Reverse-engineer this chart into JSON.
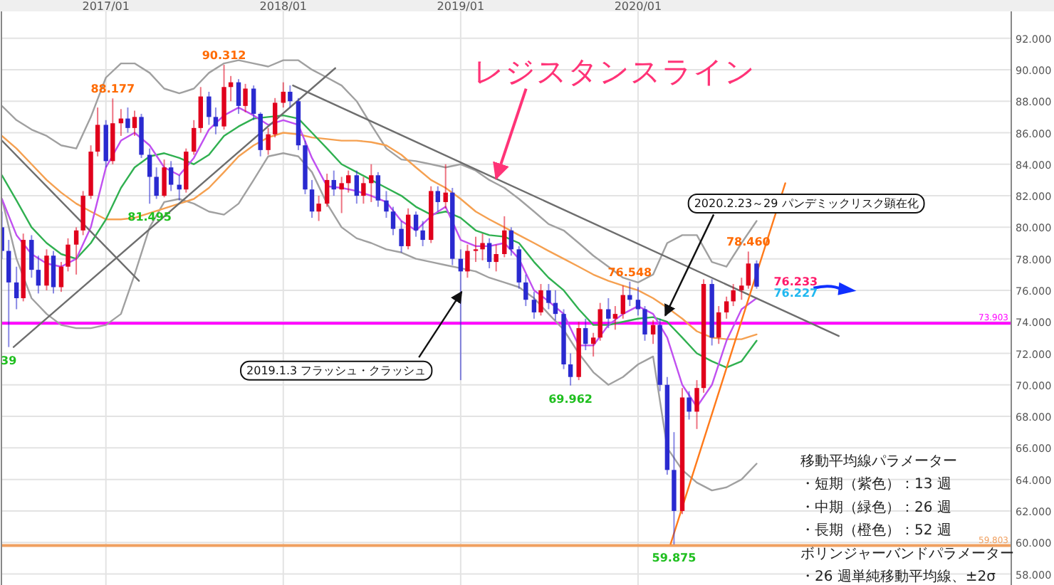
{
  "chart_data": {
    "type": "candlestick",
    "x": [
      "2016-06-01",
      "2016-06-15",
      "2016-07-01",
      "2016-07-15",
      "2016-08-01",
      "2016-08-15",
      "2016-09-01",
      "2016-09-15",
      "2016-10-01",
      "2016-10-15",
      "2016-11-01",
      "2016-11-15",
      "2016-12-01",
      "2016-12-15",
      "2017-01-01",
      "2017-01-15",
      "2017-02-01",
      "2017-02-15",
      "2017-03-01",
      "2017-03-15",
      "2017-04-01",
      "2017-04-15",
      "2017-05-01",
      "2017-05-15",
      "2017-06-01",
      "2017-06-15",
      "2017-07-01",
      "2017-07-15",
      "2017-08-01",
      "2017-08-15",
      "2017-09-01",
      "2017-09-15",
      "2017-10-01",
      "2017-10-15",
      "2017-11-01",
      "2017-11-15",
      "2017-12-01",
      "2017-12-15",
      "2018-01-01",
      "2018-01-15",
      "2018-02-01",
      "2018-02-15",
      "2018-03-01",
      "2018-03-15",
      "2018-04-01",
      "2018-04-15",
      "2018-05-01",
      "2018-05-15",
      "2018-06-01",
      "2018-06-15",
      "2018-07-01",
      "2018-07-15",
      "2018-08-01",
      "2018-08-15",
      "2018-09-01",
      "2018-09-15",
      "2018-10-01",
      "2018-10-15",
      "2018-11-01",
      "2018-11-15",
      "2018-12-01",
      "2018-12-15",
      "2019-01-01",
      "2019-01-15",
      "2019-02-01",
      "2019-02-15",
      "2019-03-01",
      "2019-03-15",
      "2019-04-01",
      "2019-04-15",
      "2019-05-01",
      "2019-05-15",
      "2019-06-01",
      "2019-06-15",
      "2019-07-01",
      "2019-07-15",
      "2019-08-01",
      "2019-08-15",
      "2019-09-01",
      "2019-09-15",
      "2019-10-01",
      "2019-10-15",
      "2019-11-01",
      "2019-11-15",
      "2019-12-01",
      "2019-12-15",
      "2020-01-01",
      "2020-01-15",
      "2020-02-01",
      "2020-02-15",
      "2020-03-01",
      "2020-03-15",
      "2020-04-01",
      "2020-04-15",
      "2020-05-01",
      "2020-05-15",
      "2020-06-01",
      "2020-06-15",
      "2020-07-01",
      "2020-07-15",
      "2020-08-01",
      "2020-08-15",
      "2020-09-01"
    ],
    "ohlc": [
      [
        80.0,
        81.0,
        78.0,
        78.5
      ],
      [
        78.5,
        79.2,
        72.4,
        76.5
      ],
      [
        76.5,
        77.5,
        74.8,
        75.5
      ],
      [
        75.5,
        79.6,
        75.3,
        79.2
      ],
      [
        79.2,
        79.5,
        76.8,
        77.3
      ],
      [
        77.3,
        78.2,
        75.8,
        76.3
      ],
      [
        76.3,
        78.6,
        76.0,
        78.2
      ],
      [
        78.2,
        78.5,
        75.8,
        76.2
      ],
      [
        76.2,
        77.8,
        75.9,
        77.5
      ],
      [
        77.5,
        79.3,
        77.2,
        78.9
      ],
      [
        78.9,
        80.0,
        77.0,
        79.8
      ],
      [
        79.8,
        82.3,
        79.5,
        82.0
      ],
      [
        82.0,
        85.2,
        81.8,
        84.8
      ],
      [
        84.8,
        87.6,
        84.5,
        86.5
      ],
      [
        86.5,
        86.8,
        83.8,
        84.2
      ],
      [
        84.2,
        88.177,
        84.0,
        86.6
      ],
      [
        86.6,
        87.5,
        85.8,
        86.9
      ],
      [
        86.9,
        87.6,
        86.0,
        86.3
      ],
      [
        86.3,
        87.4,
        85.8,
        87.0
      ],
      [
        87.0,
        87.2,
        84.4,
        84.6
      ],
      [
        84.6,
        85.0,
        81.495,
        83.2
      ],
      [
        83.2,
        83.8,
        81.8,
        82.0
      ],
      [
        82.0,
        84.3,
        81.9,
        83.8
      ],
      [
        83.8,
        84.2,
        82.3,
        82.7
      ],
      [
        82.7,
        83.3,
        81.7,
        82.4
      ],
      [
        82.4,
        85.0,
        82.2,
        84.8
      ],
      [
        84.8,
        86.8,
        84.6,
        86.3
      ],
      [
        86.3,
        88.9,
        86.0,
        88.3
      ],
      [
        88.3,
        88.6,
        86.5,
        87.0
      ],
      [
        87.0,
        87.6,
        85.9,
        86.4
      ],
      [
        86.4,
        90.312,
        86.2,
        88.9
      ],
      [
        88.9,
        89.6,
        88.0,
        89.2
      ],
      [
        89.2,
        89.4,
        87.2,
        87.7
      ],
      [
        87.7,
        89.1,
        87.3,
        88.8
      ],
      [
        88.8,
        89.0,
        86.8,
        87.2
      ],
      [
        87.2,
        87.3,
        84.5,
        84.9
      ],
      [
        84.9,
        86.3,
        84.6,
        85.9
      ],
      [
        85.9,
        88.2,
        85.7,
        87.9
      ],
      [
        87.9,
        89.2,
        87.6,
        88.6
      ],
      [
        88.6,
        89.0,
        87.6,
        88.0
      ],
      [
        88.0,
        88.2,
        84.9,
        85.2
      ],
      [
        85.2,
        85.5,
        82.1,
        82.4
      ],
      [
        82.4,
        83.0,
        80.6,
        81.0
      ],
      [
        81.0,
        82.0,
        80.4,
        81.5
      ],
      [
        81.5,
        83.4,
        81.3,
        83.0
      ],
      [
        83.0,
        83.6,
        82.0,
        82.4
      ],
      [
        82.4,
        83.2,
        80.9,
        82.8
      ],
      [
        82.8,
        83.6,
        82.2,
        83.3
      ],
      [
        83.3,
        83.6,
        81.5,
        82.0
      ],
      [
        82.0,
        83.2,
        81.5,
        82.8
      ],
      [
        82.8,
        84.0,
        81.6,
        83.3
      ],
      [
        83.3,
        83.5,
        81.3,
        81.7
      ],
      [
        81.7,
        82.3,
        80.6,
        81.0
      ],
      [
        81.0,
        81.3,
        79.5,
        79.9
      ],
      [
        79.9,
        80.4,
        78.4,
        78.8
      ],
      [
        78.8,
        81.2,
        78.6,
        80.8
      ],
      [
        80.8,
        81.0,
        79.4,
        79.8
      ],
      [
        79.8,
        80.4,
        78.8,
        79.2
      ],
      [
        79.2,
        82.6,
        79.0,
        82.3
      ],
      [
        82.3,
        82.6,
        81.0,
        81.6
      ],
      [
        81.6,
        84.0,
        81.2,
        82.2
      ],
      [
        82.2,
        82.5,
        77.6,
        78.0
      ],
      [
        78.0,
        78.6,
        70.3,
        77.2
      ],
      [
        77.2,
        78.9,
        76.8,
        78.5
      ],
      [
        78.5,
        79.4,
        77.8,
        78.6
      ],
      [
        78.6,
        79.6,
        77.9,
        79.0
      ],
      [
        79.0,
        79.3,
        77.4,
        77.8
      ],
      [
        77.8,
        78.9,
        77.2,
        78.3
      ],
      [
        78.3,
        80.7,
        78.1,
        79.8
      ],
      [
        79.8,
        80.0,
        78.2,
        78.6
      ],
      [
        78.6,
        78.8,
        76.1,
        76.5
      ],
      [
        76.5,
        77.0,
        75.0,
        75.4
      ],
      [
        75.4,
        75.9,
        74.2,
        74.6
      ],
      [
        74.6,
        76.4,
        74.4,
        76.0
      ],
      [
        76.0,
        76.4,
        74.8,
        75.2
      ],
      [
        75.2,
        76.0,
        74.1,
        74.5
      ],
      [
        74.5,
        74.8,
        71.0,
        71.3
      ],
      [
        71.3,
        72.0,
        69.962,
        70.5
      ],
      [
        70.5,
        74.0,
        70.3,
        73.6
      ],
      [
        73.6,
        74.2,
        72.2,
        72.6
      ],
      [
        72.6,
        73.3,
        71.8,
        73.0
      ],
      [
        73.0,
        75.2,
        72.8,
        74.8
      ],
      [
        74.8,
        75.5,
        73.6,
        74.2
      ],
      [
        74.2,
        75.0,
        73.5,
        74.5
      ],
      [
        74.5,
        76.3,
        74.2,
        75.7
      ],
      [
        75.7,
        76.548,
        75.0,
        75.4
      ],
      [
        75.4,
        76.2,
        74.4,
        74.8
      ],
      [
        74.8,
        75.0,
        72.8,
        73.2
      ],
      [
        73.2,
        74.1,
        72.6,
        73.8
      ],
      [
        73.8,
        74.2,
        69.6,
        70.0
      ],
      [
        70.0,
        70.5,
        64.3,
        64.6
      ],
      [
        64.6,
        67.0,
        59.875,
        62.0
      ],
      [
        62.0,
        69.8,
        61.8,
        69.2
      ],
      [
        69.2,
        69.6,
        67.8,
        68.3
      ],
      [
        68.3,
        70.3,
        67.2,
        69.8
      ],
      [
        69.8,
        76.7,
        69.5,
        76.4
      ],
      [
        76.4,
        76.7,
        72.5,
        73.0
      ],
      [
        73.0,
        75.0,
        72.6,
        74.6
      ],
      [
        74.6,
        75.6,
        74.2,
        75.3
      ],
      [
        75.3,
        76.4,
        75.0,
        76.0
      ],
      [
        76.0,
        76.8,
        75.4,
        76.3
      ],
      [
        76.3,
        78.46,
        76.1,
        77.7
      ],
      [
        77.7,
        77.9,
        76.1,
        76.233
      ]
    ],
    "colors": [
      "#2a2ad0",
      "#2a2ad0",
      "#2a2ad0",
      "#e0001c",
      "#2a2ad0",
      "#2a2ad0",
      "#e0001c",
      "#2a2ad0",
      "#e0001c",
      "#e0001c",
      "#e0001c",
      "#e0001c",
      "#e0001c",
      "#e0001c",
      "#2a2ad0",
      "#e0001c",
      "#e0001c",
      "#2a2ad0",
      "#e0001c",
      "#2a2ad0",
      "#2a2ad0",
      "#2a2ad0",
      "#e0001c",
      "#2a2ad0",
      "#2a2ad0",
      "#e0001c",
      "#e0001c",
      "#e0001c",
      "#2a2ad0",
      "#2a2ad0",
      "#e0001c",
      "#e0001c",
      "#2a2ad0",
      "#e0001c",
      "#2a2ad0",
      "#2a2ad0",
      "#e0001c",
      "#e0001c",
      "#e0001c",
      "#2a2ad0",
      "#2a2ad0",
      "#2a2ad0",
      "#2a2ad0",
      "#e0001c",
      "#e0001c",
      "#2a2ad0",
      "#e0001c",
      "#e0001c",
      "#2a2ad0",
      "#e0001c",
      "#e0001c",
      "#2a2ad0",
      "#2a2ad0",
      "#2a2ad0",
      "#2a2ad0",
      "#e0001c",
      "#2a2ad0",
      "#2a2ad0",
      "#e0001c",
      "#2a2ad0",
      "#e0001c",
      "#2a2ad0",
      "#2a2ad0",
      "#e0001c",
      "#e0001c",
      "#e0001c",
      "#2a2ad0",
      "#e0001c",
      "#e0001c",
      "#2a2ad0",
      "#2a2ad0",
      "#2a2ad0",
      "#2a2ad0",
      "#e0001c",
      "#2a2ad0",
      "#2a2ad0",
      "#2a2ad0",
      "#2a2ad0",
      "#e0001c",
      "#2a2ad0",
      "#e0001c",
      "#e0001c",
      "#2a2ad0",
      "#e0001c",
      "#e0001c",
      "#2a2ad0",
      "#2a2ad0",
      "#2a2ad0",
      "#e0001c",
      "#2a2ad0",
      "#2a2ad0",
      "#2a2ad0",
      "#e0001c",
      "#2a2ad0",
      "#e0001c",
      "#e0001c",
      "#2a2ad0",
      "#e0001c",
      "#e0001c",
      "#e0001c",
      "#e0001c",
      "#e0001c",
      "#2a2ad0"
    ],
    "series": [
      {
        "type": "line",
        "color": "#a0a0a0",
        "x": [
          "2016-06-01",
          "2016-07-01",
          "2016-08-01",
          "2016-09-01",
          "2016-10-01",
          "2016-11-01",
          "2016-12-01",
          "2017-01-01",
          "2017-02-01",
          "2017-03-01",
          "2017-04-01",
          "2017-05-01",
          "2017-06-01",
          "2017-07-01",
          "2017-08-01",
          "2017-09-01",
          "2017-10-01",
          "2017-11-01",
          "2017-12-01",
          "2018-01-01",
          "2018-02-01",
          "2018-03-01",
          "2018-04-01",
          "2018-05-01",
          "2018-06-01",
          "2018-07-01",
          "2018-08-01",
          "2018-09-01",
          "2018-10-01",
          "2018-11-01",
          "2018-12-01",
          "2019-01-01",
          "2019-02-01",
          "2019-03-01",
          "2019-04-01",
          "2019-05-01",
          "2019-06-01",
          "2019-07-01",
          "2019-08-01",
          "2019-09-01",
          "2019-10-01",
          "2019-11-01",
          "2019-12-01",
          "2020-01-01",
          "2020-02-01",
          "2020-03-01",
          "2020-04-01",
          "2020-05-01",
          "2020-06-01",
          "2020-07-01",
          "2020-08-01",
          "2020-09-01"
        ],
        "values": [
          87.7,
          86.8,
          86.2,
          85.8,
          85.2,
          85.0,
          87.0,
          89.5,
          90.4,
          90.4,
          89.8,
          88.8,
          88.5,
          88.8,
          89.8,
          90.4,
          90.6,
          90.4,
          90.2,
          90.6,
          90.6,
          90.0,
          89.5,
          89.0,
          88.0,
          86.5,
          85.0,
          84.3,
          84.2,
          84.0,
          83.8,
          84.0,
          83.6,
          83.0,
          82.5,
          81.8,
          81.0,
          80.2,
          79.8,
          79.0,
          78.2,
          77.5,
          76.8,
          76.5,
          77.0,
          79.0,
          79.5,
          79.5,
          77.8,
          77.5,
          79.0,
          80.4
        ]
      },
      {
        "type": "line",
        "color": "#a0a0a0",
        "x": [
          "2016-06-01",
          "2016-07-01",
          "2016-08-01",
          "2016-09-01",
          "2016-10-01",
          "2016-11-01",
          "2016-12-01",
          "2017-01-01",
          "2017-02-01",
          "2017-03-01",
          "2017-04-01",
          "2017-05-01",
          "2017-06-01",
          "2017-07-01",
          "2017-08-01",
          "2017-09-01",
          "2017-10-01",
          "2017-11-01",
          "2017-12-01",
          "2018-01-01",
          "2018-02-01",
          "2018-03-01",
          "2018-04-01",
          "2018-05-01",
          "2018-06-01",
          "2018-07-01",
          "2018-08-01",
          "2018-09-01",
          "2018-10-01",
          "2018-11-01",
          "2018-12-01",
          "2019-01-01",
          "2019-02-01",
          "2019-03-01",
          "2019-04-01",
          "2019-05-01",
          "2019-06-01",
          "2019-07-01",
          "2019-08-01",
          "2019-09-01",
          "2019-10-01",
          "2019-11-01",
          "2019-12-01",
          "2020-01-01",
          "2020-02-01",
          "2020-03-01",
          "2020-04-01",
          "2020-05-01",
          "2020-06-01",
          "2020-07-01",
          "2020-08-01",
          "2020-09-01"
        ],
        "values": [
          81.8,
          78.0,
          75.5,
          74.5,
          73.8,
          73.6,
          73.6,
          73.8,
          74.5,
          77.0,
          80.0,
          81.6,
          81.8,
          81.5,
          81.0,
          80.8,
          81.5,
          83.0,
          84.5,
          84.7,
          84.5,
          83.5,
          81.5,
          80.0,
          79.3,
          79.0,
          78.6,
          78.4,
          78.0,
          77.8,
          77.6,
          77.4,
          77.2,
          76.8,
          76.5,
          76.2,
          75.5,
          74.5,
          73.5,
          72.0,
          70.8,
          70.0,
          70.5,
          71.3,
          71.8,
          66.0,
          64.6,
          63.8,
          63.3,
          63.5,
          64.0,
          65.0
        ]
      },
      {
        "type": "line",
        "color": "#f5a050",
        "x": [
          "2016-06-01",
          "2016-07-01",
          "2016-08-01",
          "2016-09-01",
          "2016-10-01",
          "2016-11-01",
          "2016-12-01",
          "2017-01-01",
          "2017-02-01",
          "2017-03-01",
          "2017-04-01",
          "2017-05-01",
          "2017-06-01",
          "2017-07-01",
          "2017-08-01",
          "2017-09-01",
          "2017-10-01",
          "2017-11-01",
          "2017-12-01",
          "2018-01-01",
          "2018-02-01",
          "2018-03-01",
          "2018-04-01",
          "2018-05-01",
          "2018-06-01",
          "2018-07-01",
          "2018-08-01",
          "2018-09-01",
          "2018-10-01",
          "2018-11-01",
          "2018-12-01",
          "2019-01-01",
          "2019-02-01",
          "2019-03-01",
          "2019-04-01",
          "2019-05-01",
          "2019-06-01",
          "2019-07-01",
          "2019-08-01",
          "2019-09-01",
          "2019-10-01",
          "2019-11-01",
          "2019-12-01",
          "2020-01-01",
          "2020-02-01",
          "2020-03-01",
          "2020-04-01",
          "2020-05-01",
          "2020-06-01",
          "2020-07-01",
          "2020-08-01",
          "2020-09-01"
        ],
        "values": [
          85.8,
          85.0,
          84.0,
          83.0,
          82.2,
          81.5,
          81.0,
          80.5,
          80.5,
          80.6,
          80.9,
          81.2,
          81.5,
          81.8,
          82.5,
          83.5,
          84.5,
          85.2,
          85.7,
          86.0,
          85.9,
          85.7,
          85.6,
          85.5,
          85.5,
          85.4,
          85.2,
          84.6,
          83.8,
          83.0,
          82.5,
          81.8,
          81.0,
          80.5,
          80.0,
          79.5,
          79.0,
          78.5,
          78.0,
          77.5,
          77.0,
          76.6,
          76.3,
          76.0,
          75.5,
          74.9,
          74.2,
          73.4,
          73.0,
          72.9,
          72.9,
          73.2
        ]
      },
      {
        "type": "line",
        "color": "#30b050",
        "x": [
          "2016-06-01",
          "2016-07-01",
          "2016-08-01",
          "2016-09-01",
          "2016-10-01",
          "2016-11-01",
          "2016-12-01",
          "2017-01-01",
          "2017-02-01",
          "2017-03-01",
          "2017-04-01",
          "2017-05-01",
          "2017-06-01",
          "2017-07-01",
          "2017-08-01",
          "2017-09-01",
          "2017-10-01",
          "2017-11-01",
          "2017-12-01",
          "2018-01-01",
          "2018-02-01",
          "2018-03-01",
          "2018-04-01",
          "2018-05-01",
          "2018-06-01",
          "2018-07-01",
          "2018-08-01",
          "2018-09-01",
          "2018-10-01",
          "2018-11-01",
          "2018-12-01",
          "2019-01-01",
          "2019-02-01",
          "2019-03-01",
          "2019-04-01",
          "2019-05-01",
          "2019-06-01",
          "2019-07-01",
          "2019-08-01",
          "2019-09-01",
          "2019-10-01",
          "2019-11-01",
          "2019-12-01",
          "2020-01-01",
          "2020-02-01",
          "2020-03-01",
          "2020-04-01",
          "2020-05-01",
          "2020-06-01",
          "2020-07-01",
          "2020-08-01",
          "2020-09-01"
        ],
        "values": [
          83.3,
          81.7,
          80.0,
          79.0,
          78.3,
          78.0,
          79.0,
          80.5,
          82.5,
          83.8,
          84.5,
          84.7,
          84.4,
          84.0,
          84.6,
          85.8,
          86.4,
          86.9,
          87.0,
          87.1,
          86.9,
          86.0,
          85.0,
          84.0,
          83.5,
          83.0,
          82.5,
          82.0,
          81.3,
          80.8,
          81.0,
          80.6,
          79.8,
          79.5,
          79.4,
          79.0,
          77.8,
          76.8,
          76.0,
          74.8,
          73.8,
          73.8,
          74.0,
          74.2,
          74.3,
          74.0,
          73.0,
          72.0,
          71.5,
          71.1,
          71.5,
          72.8
        ]
      },
      {
        "type": "line",
        "color": "#c050f0",
        "x": [
          "2016-06-01",
          "2016-07-01",
          "2016-08-01",
          "2016-09-01",
          "2016-10-01",
          "2016-11-01",
          "2016-12-01",
          "2017-01-01",
          "2017-02-01",
          "2017-03-01",
          "2017-04-01",
          "2017-05-01",
          "2017-06-01",
          "2017-07-01",
          "2017-08-01",
          "2017-09-01",
          "2017-10-01",
          "2017-11-01",
          "2017-12-01",
          "2018-01-01",
          "2018-02-01",
          "2018-03-01",
          "2018-04-01",
          "2018-05-01",
          "2018-06-01",
          "2018-07-01",
          "2018-08-01",
          "2018-09-01",
          "2018-10-01",
          "2018-11-01",
          "2018-12-01",
          "2019-01-01",
          "2019-02-01",
          "2019-03-01",
          "2019-04-01",
          "2019-05-01",
          "2019-06-01",
          "2019-07-01",
          "2019-08-01",
          "2019-09-01",
          "2019-10-01",
          "2019-11-01",
          "2019-12-01",
          "2020-01-01",
          "2020-02-01",
          "2020-03-01",
          "2020-04-01",
          "2020-05-01",
          "2020-06-01",
          "2020-07-01",
          "2020-08-01",
          "2020-09-01"
        ],
        "values": [
          81.8,
          79.5,
          78.3,
          77.7,
          77.5,
          78.0,
          80.0,
          83.8,
          85.5,
          86.0,
          85.2,
          83.8,
          83.3,
          84.4,
          86.2,
          87.1,
          87.6,
          87.1,
          86.5,
          86.8,
          86.5,
          84.4,
          82.6,
          82.5,
          82.3,
          82.0,
          81.6,
          80.4,
          79.8,
          80.7,
          81.3,
          79.2,
          78.8,
          78.8,
          79.0,
          78.0,
          76.0,
          75.3,
          74.5,
          72.5,
          72.5,
          73.8,
          74.5,
          75.0,
          74.5,
          73.0,
          70.0,
          68.6,
          70.0,
          72.8,
          74.8,
          75.5
        ]
      },
      {
        "type": "line",
        "color": "#6e6e6e",
        "x": [
          "2016-06-01",
          "2017-03-10"
        ],
        "values": [
          85.5,
          76.6
        ]
      },
      {
        "type": "line",
        "color": "#6e6e6e",
        "x": [
          "2016-06-25",
          "2018-04-18"
        ],
        "values": [
          72.4,
          90.1
        ]
      },
      {
        "type": "line",
        "color": "#6e6e6e",
        "x": [
          "2018-01-21",
          "2021-02-17"
        ],
        "values": [
          89.0,
          73.1
        ]
      },
      {
        "type": "line",
        "color": "#ff7a1a",
        "x": [
          "2020-03-08",
          "2020-10-30"
        ],
        "values": [
          59.9,
          82.8
        ]
      }
    ],
    "xlim": [
      "2016-05-31",
      "2022-02-07"
    ],
    "xticks": [
      {
        "value": "2017-01-01",
        "label": "2017/01"
      },
      {
        "value": "2018-01-01",
        "label": "2018/01"
      },
      {
        "value": "2019-01-01",
        "label": "2019/01"
      },
      {
        "value": "2020-01-01",
        "label": "2020/01"
      }
    ],
    "ylim": [
      57.3,
      93.7
    ],
    "yticks": [
      {
        "value": 58,
        "label": "58.000"
      },
      {
        "value": 60,
        "label": "60.000"
      },
      {
        "value": 62,
        "label": "62.000"
      },
      {
        "value": 64,
        "label": "64.000"
      },
      {
        "value": 66,
        "label": "66.000"
      },
      {
        "value": 68,
        "label": "68.000"
      },
      {
        "value": 70,
        "label": "70.000"
      },
      {
        "value": 72,
        "label": "72.000"
      },
      {
        "value": 74,
        "label": "74.000"
      },
      {
        "value": 76,
        "label": "76.000"
      },
      {
        "value": 78,
        "label": "78.000"
      },
      {
        "value": 80,
        "label": "80.000"
      },
      {
        "value": 82,
        "label": "82.000"
      },
      {
        "value": 84,
        "label": "84.000"
      },
      {
        "value": 86,
        "label": "86.000"
      },
      {
        "value": 88,
        "label": "88.000"
      },
      {
        "value": 90,
        "label": "90.000"
      },
      {
        "value": 92,
        "label": "92.000"
      }
    ],
    "grid": true,
    "ref_lines": [
      {
        "axis": "y",
        "value": 73.903,
        "label": "73.903",
        "color": "#ff00ff"
      },
      {
        "axis": "y",
        "value": 59.803,
        "label": "59.803",
        "color": "#f0a060"
      }
    ],
    "annotations": [
      {
        "text": "レジスタンスライン",
        "x": "2019-03-15",
        "y": 83.1
      },
      {
        "text": "2019.1.3 フラッシュ・クラッシュ",
        "x": "2019-01-03",
        "y": 75.9
      },
      {
        "text": "2020.2.23～29 パンデミックリスク顕在化",
        "x": "2020-02-26",
        "y": 74.4
      },
      {
        "text": "39",
        "x": "2016-06-15",
        "y": 72.4
      },
      {
        "text": "88.177",
        "x": "2017-01-15",
        "y": 88.177
      },
      {
        "text": "81.495",
        "x": "2017-04-01",
        "y": 81.495
      },
      {
        "text": "90.312",
        "x": "2017-09-01",
        "y": 90.312
      },
      {
        "text": "69.962",
        "x": "2019-08-15",
        "y": 69.962
      },
      {
        "text": "76.548",
        "x": "2019-12-15",
        "y": 76.548
      },
      {
        "text": "59.875",
        "x": "2020-03-15",
        "y": 59.875
      },
      {
        "text": "78.460",
        "x": "2020-08-15",
        "y": 78.46
      },
      {
        "text": "76.233",
        "x": "2020-09-01",
        "y": 76.233
      },
      {
        "text": "76.227",
        "x": "2020-09-01",
        "y": 76.227
      },
      "移動平均線パラメーター",
      "・短期（紫色）：13 週",
      "・中期（緑色）：26 週",
      "・長期（橙色）：52 週",
      "ボリンジャーバンドパラメーター",
      "・26 週単純移動平均線、±2σ"
    ]
  }
}
